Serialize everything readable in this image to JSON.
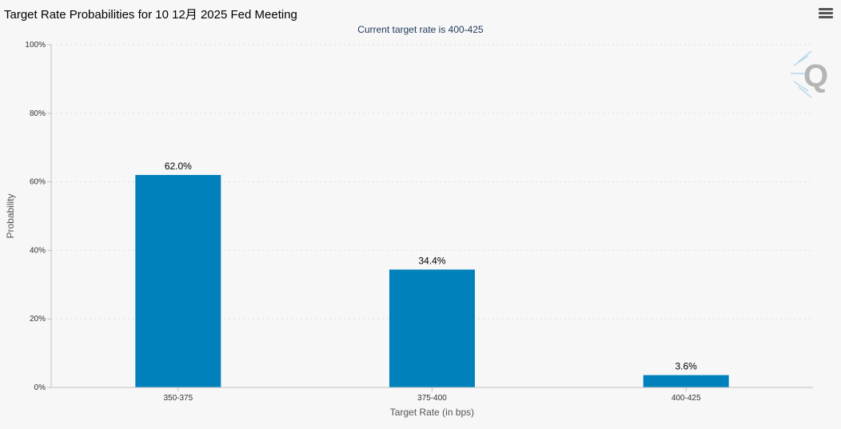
{
  "header": {
    "title": "Target Rate Probabilities for 10 12月 2025 Fed Meeting",
    "menu_icon": "hamburger-menu-icon"
  },
  "logo_icon": "q-logo-icon",
  "colors": {
    "bar": "#0081bb",
    "background": "#f7f7f7",
    "grid": "#dddddd"
  },
  "chart_data": {
    "type": "bar",
    "title": "Target Rate Probabilities for 10 12月 2025 Fed Meeting",
    "subtitle": "Current target rate is 400-425",
    "categories": [
      "350-375",
      "375-400",
      "400-425"
    ],
    "values": [
      62.0,
      34.4,
      3.6
    ],
    "data_labels": [
      "62.0%",
      "34.4%",
      "3.6%"
    ],
    "xlabel": "Target Rate (in bps)",
    "ylabel": "Probability",
    "ylim": [
      0,
      100
    ],
    "yticks": [
      "0%",
      "20%",
      "40%",
      "60%",
      "80%",
      "100%"
    ],
    "grid": true
  }
}
